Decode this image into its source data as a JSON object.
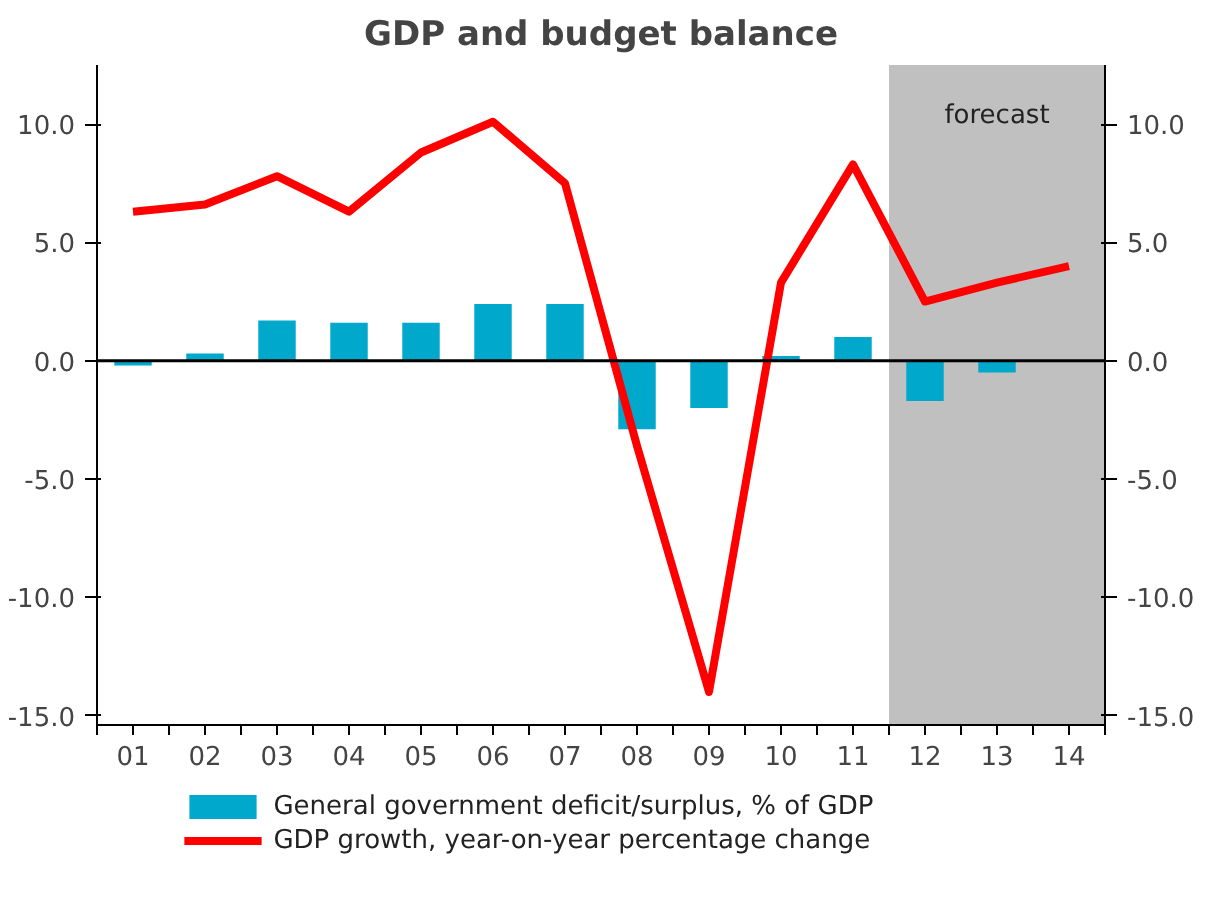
{
  "chart_data": {
    "type": "bar",
    "title": "GDP and budget balance",
    "categories": [
      "01",
      "02",
      "03",
      "04",
      "05",
      "06",
      "07",
      "08",
      "09",
      "10",
      "11",
      "12",
      "13",
      "14"
    ],
    "series": [
      {
        "name": "General government deficit/surplus, % of GDP",
        "color": "#00a8cc",
        "values": [
          -0.2,
          0.3,
          1.7,
          1.6,
          1.6,
          2.4,
          2.4,
          -2.9,
          -2.0,
          0.2,
          1.0,
          -1.7,
          -0.5,
          null
        ]
      },
      {
        "name": "GDP growth, year-on-year percentage change",
        "type": "line",
        "color": "#ff0000",
        "values": [
          6.3,
          6.6,
          7.8,
          6.3,
          8.8,
          10.1,
          7.5,
          -3.6,
          -14.0,
          3.3,
          8.3,
          2.5,
          3.3,
          4.0
        ]
      }
    ],
    "ylim": [
      -15.4,
      12.5
    ],
    "yticks": [
      {
        "value": -15,
        "label": "-15.0"
      },
      {
        "value": -10,
        "label": "-10.0"
      },
      {
        "value": -5,
        "label": "-5.0"
      },
      {
        "value": 0,
        "label": "0.0"
      },
      {
        "value": 5,
        "label": "5.0"
      },
      {
        "value": 10,
        "label": "10.0"
      }
    ],
    "y2lim": [
      -15.4,
      12.5
    ],
    "y2ticks": [
      {
        "value": -15,
        "label": "-15.0"
      },
      {
        "value": -10,
        "label": "-10.0"
      },
      {
        "value": -5,
        "label": "-5.0"
      },
      {
        "value": 0,
        "label": "0.0"
      },
      {
        "value": 5,
        "label": "5.0"
      },
      {
        "value": 10,
        "label": "10.0"
      }
    ],
    "ref_lines": [
      {
        "axis": "y",
        "value": 0,
        "color": "#000000"
      }
    ],
    "bands": [
      {
        "axis": "x",
        "from": "12",
        "to": "14",
        "label": "forecast",
        "color": "#c0c0c0"
      }
    ],
    "legend": "bottom",
    "grid": false,
    "line_style": "solid",
    "marker": "none"
  }
}
